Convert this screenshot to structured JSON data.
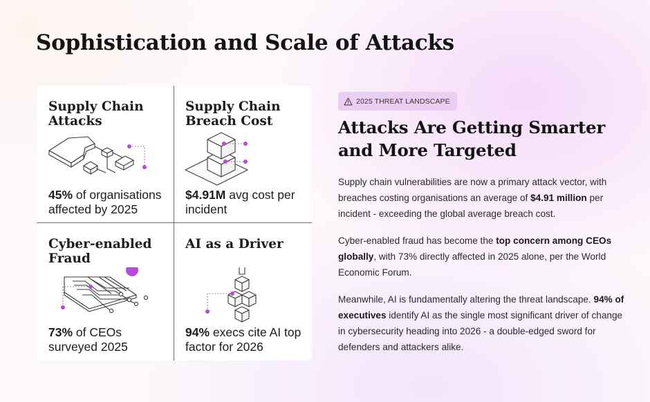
{
  "page": {
    "title": "Sophistication and Scale of Attacks"
  },
  "cards": [
    {
      "title": "Supply Chain Attacks",
      "stat_value": "45%",
      "stat_text": " of organisations affected by 2025",
      "icon": "supply-chain-network-icon"
    },
    {
      "title": "Supply Chain Breach Cost",
      "stat_value": "$4.91M",
      "stat_text": " avg cost per incident",
      "icon": "stacked-cubes-icon"
    },
    {
      "title": "Cyber-enabled Fraud",
      "stat_value": "73%",
      "stat_text": " of CEOs surveyed 2025",
      "icon": "circuit-board-icon"
    },
    {
      "title": "AI as a Driver",
      "stat_value": "94%",
      "stat_text": " execs cite AI top factor for 2026",
      "icon": "cube-pyramid-arrow-icon"
    }
  ],
  "tag": {
    "label": "2025 THREAT LANDSCAPE",
    "icon": "warning-triangle-icon"
  },
  "headline": "Attacks Are Getting Smarter and More Targeted",
  "paragraphs": [
    {
      "p1": "Supply chain vulnerabilities are now a primary attack vector, with breaches costing organisations an average of ",
      "b1": "$4.91 million",
      "p2": " per incident - exceeding the global average breach cost."
    },
    {
      "p1": "Cyber-enabled fraud has become the ",
      "b1": "top concern among CEOs globally",
      "p2": ", with 73% directly affected in 2025 alone, per the World Economic Forum."
    },
    {
      "p1": "Meanwhile, AI is fundamentally altering the threat landscape. ",
      "b1": "94% of executives",
      "p2": " identify AI as the single most significant driver of change in cybersecurity heading into 2026 - a double-edged sword for defenders and attackers alike."
    }
  ],
  "colors": {
    "accent": "#b74ad8",
    "tag_bg": "#ebcff2",
    "line": "#3a3a3a",
    "divider": "#6d6d6d"
  }
}
